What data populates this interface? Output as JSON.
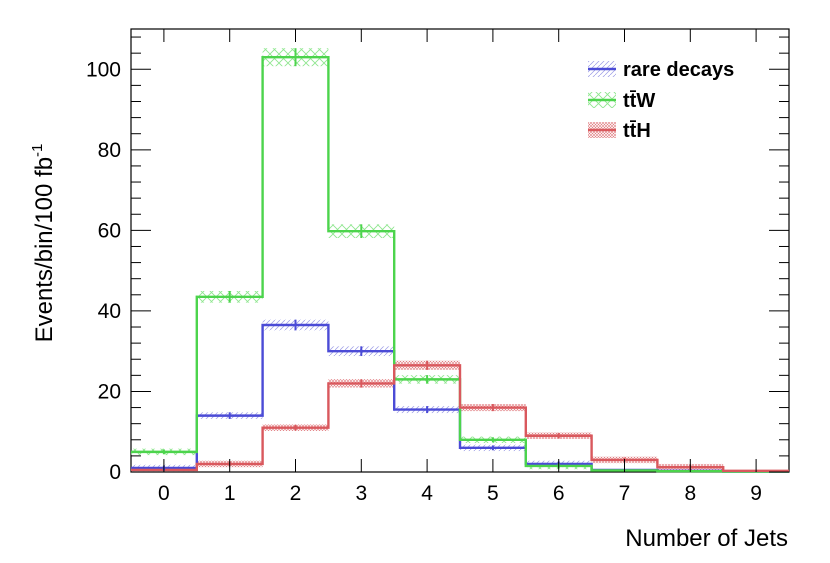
{
  "chart_data": {
    "type": "histogram-step",
    "xlabel": "Number of Jets",
    "ylabel": "Events/bin/100 fb",
    "ylabel_superscript": "-1",
    "x_bins": [
      -0.5,
      0.5,
      1.5,
      2.5,
      3.5,
      4.5,
      5.5,
      6.5,
      7.5,
      8.5,
      9.5
    ],
    "xlim": [
      -0.5,
      9.5
    ],
    "ylim": [
      0,
      110
    ],
    "x_ticks": [
      "0",
      "1",
      "2",
      "3",
      "4",
      "5",
      "6",
      "7",
      "8",
      "9"
    ],
    "y_ticks": [
      "0",
      "20",
      "40",
      "60",
      "80",
      "100"
    ],
    "legend_position": "top-right",
    "series": [
      {
        "name": "rare decays",
        "color": "#4b4bd6",
        "hatch": "light",
        "values": [
          1.0,
          14.0,
          36.5,
          30.0,
          15.5,
          6.0,
          2.0,
          0.5,
          0.3,
          0.1
        ]
      },
      {
        "name": "tt̄W",
        "color": "#4cd44c",
        "hatch": "cross",
        "values": [
          5.0,
          43.5,
          103.0,
          59.8,
          23.0,
          8.0,
          1.5,
          0.4,
          0.2,
          0.1
        ]
      },
      {
        "name": "tt̄H",
        "color": "#d9585d",
        "hatch": "dense",
        "values": [
          0.5,
          2.0,
          11.0,
          22.0,
          26.5,
          16.0,
          9.0,
          3.0,
          1.2,
          0.3
        ]
      }
    ],
    "legend": [
      {
        "label": "rare decays"
      },
      {
        "label": "tt̄W"
      },
      {
        "label": "tt̄H"
      }
    ]
  }
}
